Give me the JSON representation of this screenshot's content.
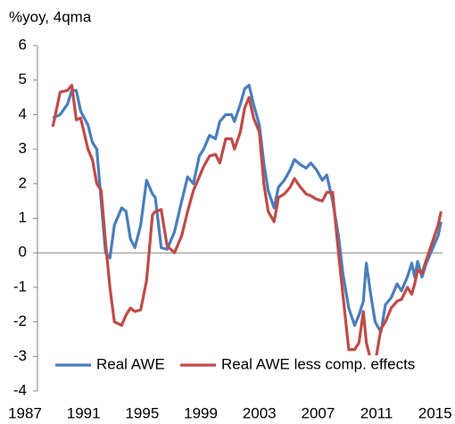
{
  "chart_data": {
    "type": "line",
    "y_label": "%yoy, 4qma",
    "x": [
      1988.9,
      1989.4,
      1989.9,
      1990.2,
      1990.5,
      1990.8,
      1991.3,
      1991.6,
      1991.9,
      1992.2,
      1992.5,
      1992.8,
      1993.1,
      1993.6,
      1993.9,
      1994.2,
      1994.5,
      1994.9,
      1995.3,
      1995.7,
      1995.9,
      1996.3,
      1996.7,
      1997.2,
      1997.7,
      1998.1,
      1998.5,
      1998.9,
      1999.2,
      1999.6,
      2000.0,
      2000.3,
      2000.7,
      2001.1,
      2001.3,
      2001.7,
      2002.0,
      2002.3,
      2002.6,
      2003.0,
      2003.3,
      2003.6,
      2004.0,
      2004.3,
      2004.7,
      2005.1,
      2005.4,
      2005.8,
      2006.2,
      2006.5,
      2006.9,
      2007.3,
      2007.6,
      2008.0,
      2008.4,
      2008.7,
      2009.1,
      2009.5,
      2009.8,
      2010.1,
      2010.3,
      2010.6,
      2010.9,
      2011.3,
      2011.6,
      2012.0,
      2012.4,
      2012.7,
      2013.1,
      2013.4,
      2013.6,
      2013.8,
      2014.1,
      2014.4,
      2014.8,
      2015.2,
      2015.4
    ],
    "series": [
      {
        "name": "Real AWE",
        "color": "#4a7ebb",
        "values": [
          3.9,
          4.0,
          4.3,
          4.7,
          4.7,
          4.1,
          3.7,
          3.2,
          3.0,
          1.5,
          0.0,
          -0.15,
          0.8,
          1.3,
          1.2,
          0.4,
          0.15,
          0.8,
          2.1,
          1.7,
          1.6,
          0.15,
          0.1,
          0.6,
          1.5,
          2.2,
          2.0,
          2.8,
          3.0,
          3.4,
          3.3,
          3.8,
          4.0,
          4.0,
          3.8,
          4.3,
          4.75,
          4.85,
          4.3,
          3.7,
          2.6,
          1.8,
          1.3,
          1.9,
          2.1,
          2.4,
          2.7,
          2.55,
          2.45,
          2.6,
          2.4,
          2.1,
          2.25,
          1.5,
          0.5,
          -0.6,
          -1.6,
          -2.1,
          -1.8,
          -1.4,
          -0.3,
          -1.2,
          -2.0,
          -2.3,
          -1.5,
          -1.3,
          -0.9,
          -1.1,
          -0.7,
          -0.3,
          -0.7,
          -0.25,
          -0.7,
          -0.3,
          0.1,
          0.5,
          0.9
        ]
      },
      {
        "name": "Real AWE less comp. effects",
        "color": "#be4b48",
        "values": [
          3.65,
          4.65,
          4.7,
          4.85,
          3.85,
          3.9,
          3.0,
          2.7,
          2.0,
          1.8,
          0.3,
          -1.0,
          -2.0,
          -2.1,
          -1.8,
          -1.6,
          -1.7,
          -1.65,
          -0.8,
          1.1,
          1.2,
          1.25,
          0.2,
          0.0,
          0.5,
          1.2,
          1.8,
          2.2,
          2.5,
          2.8,
          2.85,
          2.6,
          3.3,
          3.3,
          3.0,
          3.5,
          4.2,
          4.5,
          3.9,
          3.5,
          2.0,
          1.2,
          0.9,
          1.6,
          1.7,
          1.9,
          2.15,
          1.9,
          1.7,
          1.65,
          1.55,
          1.5,
          1.75,
          1.75,
          0.0,
          -1.2,
          -2.8,
          -2.8,
          -2.6,
          -1.7,
          -2.6,
          -3.1,
          -3.2,
          -2.2,
          -2.0,
          -1.6,
          -1.4,
          -1.35,
          -1.0,
          -1.2,
          -0.9,
          -0.5,
          -0.6,
          -0.2,
          0.3,
          0.8,
          1.2
        ]
      }
    ],
    "xlim": [
      1987,
      2015.5
    ],
    "xticks": [
      1987,
      1991,
      1995,
      1999,
      2003,
      2007,
      2011,
      2015
    ],
    "ylim": [
      -4,
      6
    ],
    "yticks": [
      -4,
      -3,
      -2,
      -1,
      0,
      1,
      2,
      3,
      4,
      5,
      6
    ],
    "legend": "bottom"
  }
}
